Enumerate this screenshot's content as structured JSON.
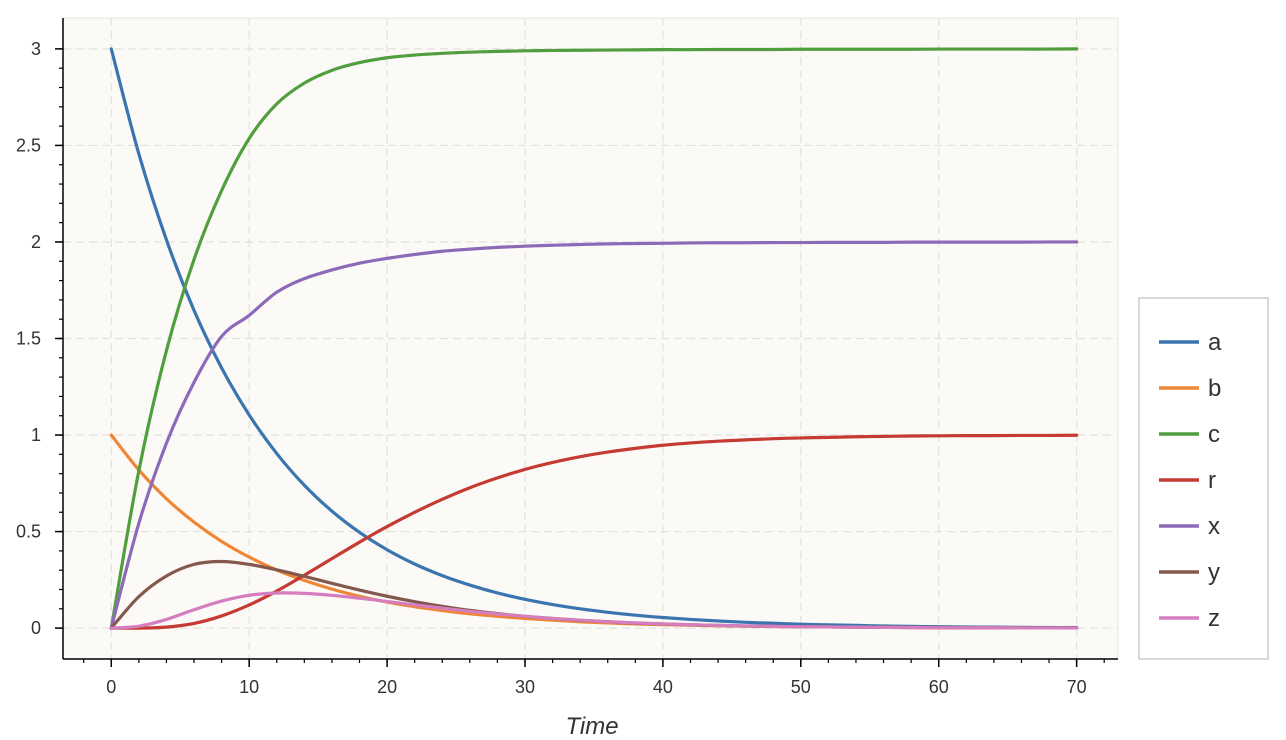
{
  "chart_data": {
    "type": "line",
    "title": "",
    "xlabel": "Time",
    "ylabel": "",
    "xlim": [
      -3.5,
      73
    ],
    "ylim": [
      -0.16,
      3.16
    ],
    "x_ticks": [
      0,
      10,
      20,
      30,
      40,
      50,
      60,
      70
    ],
    "x_tick_labels": [
      "0",
      "10",
      "20",
      "30",
      "40",
      "50",
      "60",
      "70"
    ],
    "y_ticks": [
      0,
      0.5,
      1,
      1.5,
      2,
      2.5,
      3
    ],
    "y_tick_labels": [
      "0",
      "0.5",
      "1",
      "1.5",
      "2",
      "2.5",
      "3"
    ],
    "grid": true,
    "legend_position": "right",
    "background_color": "#fbfaf6",
    "x": [
      0,
      2,
      4,
      6,
      8,
      10,
      12,
      14,
      16,
      18,
      20,
      22,
      24,
      26,
      28,
      30,
      32,
      34,
      36,
      38,
      40,
      42,
      44,
      46,
      48,
      50,
      52,
      54,
      56,
      58,
      60,
      62,
      64,
      66,
      68,
      70
    ],
    "series": [
      {
        "name": "a",
        "color": "#3a75b0",
        "values": [
          3.0,
          2.456,
          2.011,
          1.646,
          1.348,
          1.104,
          0.904,
          0.74,
          0.606,
          0.496,
          0.406,
          0.332,
          0.272,
          0.223,
          0.182,
          0.149,
          0.122,
          0.1,
          0.082,
          0.067,
          0.055,
          0.045,
          0.037,
          0.03,
          0.025,
          0.02,
          0.017,
          0.014,
          0.011,
          0.009,
          0.007,
          0.006,
          0.005,
          0.004,
          0.003,
          0.003
        ]
      },
      {
        "name": "b",
        "color": "#ef8636",
        "values": [
          1.0,
          0.819,
          0.67,
          0.549,
          0.449,
          0.368,
          0.301,
          0.247,
          0.202,
          0.165,
          0.135,
          0.111,
          0.091,
          0.074,
          0.061,
          0.05,
          0.041,
          0.033,
          0.027,
          0.022,
          0.018,
          0.015,
          0.012,
          0.01,
          0.008,
          0.007,
          0.006,
          0.005,
          0.004,
          0.003,
          0.002,
          0.002,
          0.002,
          0.001,
          0.001,
          0.001
        ]
      },
      {
        "name": "c",
        "color": "#519e3e",
        "values": [
          0.0,
          0.815,
          1.437,
          1.909,
          2.266,
          2.536,
          2.715,
          2.823,
          2.889,
          2.929,
          2.954,
          2.968,
          2.977,
          2.983,
          2.987,
          2.99,
          2.992,
          2.993,
          2.994,
          2.995,
          2.996,
          2.996,
          2.997,
          2.997,
          2.997,
          2.998,
          2.998,
          2.998,
          2.998,
          2.998,
          2.999,
          2.999,
          2.999,
          2.999,
          2.999,
          3.0
        ]
      },
      {
        "name": "r",
        "color": "#c53a32",
        "values": [
          0.0,
          0.0,
          0.005,
          0.024,
          0.063,
          0.12,
          0.192,
          0.274,
          0.36,
          0.445,
          0.526,
          0.6,
          0.667,
          0.727,
          0.778,
          0.822,
          0.858,
          0.888,
          0.912,
          0.931,
          0.947,
          0.959,
          0.968,
          0.975,
          0.981,
          0.985,
          0.988,
          0.991,
          0.993,
          0.995,
          0.996,
          0.997,
          0.997,
          0.998,
          0.998,
          0.999
        ]
      },
      {
        "name": "x",
        "color": "#8d6ab8",
        "values": [
          0.0,
          0.543,
          0.958,
          1.273,
          1.511,
          1.62,
          1.74,
          1.81,
          1.855,
          1.89,
          1.915,
          1.935,
          1.952,
          1.963,
          1.972,
          1.978,
          1.983,
          1.987,
          1.99,
          1.992,
          1.993,
          1.995,
          1.996,
          1.996,
          1.997,
          1.997,
          1.998,
          1.998,
          1.998,
          1.999,
          1.999,
          1.999,
          1.999,
          1.999,
          2.0,
          2.0
        ]
      },
      {
        "name": "y",
        "color": "#85584e",
        "values": [
          0.0,
          0.163,
          0.27,
          0.33,
          0.345,
          0.33,
          0.302,
          0.268,
          0.232,
          0.197,
          0.165,
          0.137,
          0.113,
          0.092,
          0.075,
          0.061,
          0.05,
          0.04,
          0.033,
          0.026,
          0.021,
          0.017,
          0.014,
          0.011,
          0.009,
          0.007,
          0.006,
          0.005,
          0.004,
          0.003,
          0.003,
          0.002,
          0.002,
          0.001,
          0.001,
          0.001
        ]
      },
      {
        "name": "z",
        "color": "#d57dbf",
        "values": [
          0.0,
          0.01,
          0.045,
          0.095,
          0.14,
          0.17,
          0.182,
          0.18,
          0.17,
          0.155,
          0.138,
          0.12,
          0.103,
          0.087,
          0.073,
          0.061,
          0.05,
          0.041,
          0.033,
          0.027,
          0.022,
          0.018,
          0.014,
          0.011,
          0.009,
          0.007,
          0.006,
          0.005,
          0.004,
          0.003,
          0.002,
          0.002,
          0.002,
          0.001,
          0.001,
          0.001
        ]
      }
    ]
  }
}
